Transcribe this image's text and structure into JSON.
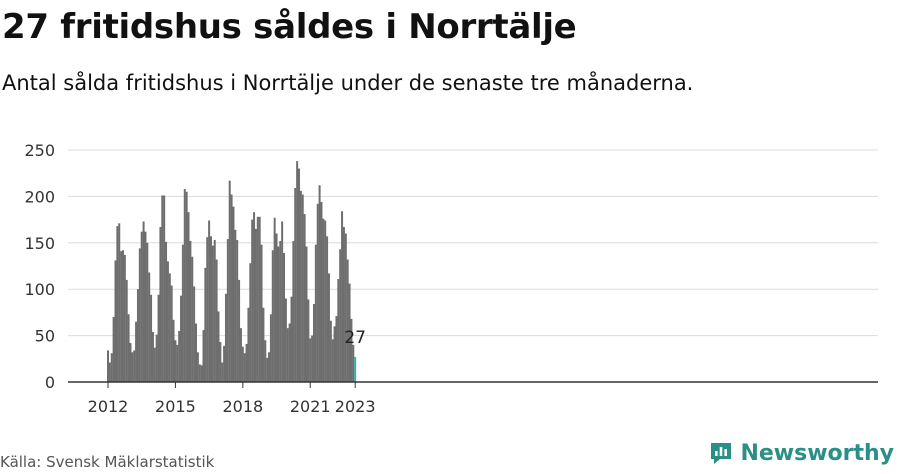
{
  "title": "27 fritidshus såldes i Norrtälje",
  "subtitle": "Antal sålda fritidshus i Norrtälje under de senaste tre månaderna.",
  "source": "Källa: Svensk Mäklarstatistik",
  "brand": {
    "name": "Newsworthy",
    "color": "#2a8f86"
  },
  "chart_data": {
    "type": "bar",
    "x_start": "2012-01",
    "x_interval": "month",
    "ylim": [
      0,
      260
    ],
    "y_ticks": [
      0,
      50,
      100,
      150,
      200,
      250
    ],
    "x_ticks": [
      {
        "label": "2012",
        "index": 0
      },
      {
        "label": "2015",
        "index": 36
      },
      {
        "label": "2018",
        "index": 72
      },
      {
        "label": "2021",
        "index": 108
      },
      {
        "label": "2023",
        "index": 132
      }
    ],
    "grid": true,
    "bar_color": "#6e6e6e",
    "highlight_color": "#2fb5b0",
    "highlight_label": "27",
    "values": [
      34,
      21,
      31,
      70,
      131,
      168,
      171,
      141,
      142,
      137,
      110,
      73,
      42,
      32,
      34,
      65,
      100,
      144,
      162,
      173,
      162,
      150,
      118,
      94,
      54,
      37,
      51,
      94,
      167,
      201,
      201,
      151,
      130,
      117,
      104,
      67,
      45,
      40,
      55,
      93,
      148,
      208,
      205,
      183,
      152,
      135,
      103,
      63,
      32,
      19,
      18,
      56,
      123,
      156,
      174,
      157,
      147,
      153,
      132,
      76,
      43,
      21,
      39,
      95,
      154,
      217,
      202,
      189,
      164,
      153,
      110,
      58,
      38,
      31,
      41,
      80,
      128,
      175,
      183,
      165,
      178,
      178,
      148,
      80,
      45,
      26,
      32,
      73,
      142,
      177,
      160,
      146,
      152,
      173,
      139,
      90,
      58,
      63,
      92,
      152,
      209,
      238,
      230,
      206,
      202,
      181,
      146,
      89,
      47,
      50,
      84,
      148,
      192,
      212,
      194,
      176,
      174,
      157,
      117,
      66,
      46,
      60,
      71,
      111,
      143,
      184,
      167,
      160,
      132,
      106,
      68,
      40,
      27
    ]
  }
}
